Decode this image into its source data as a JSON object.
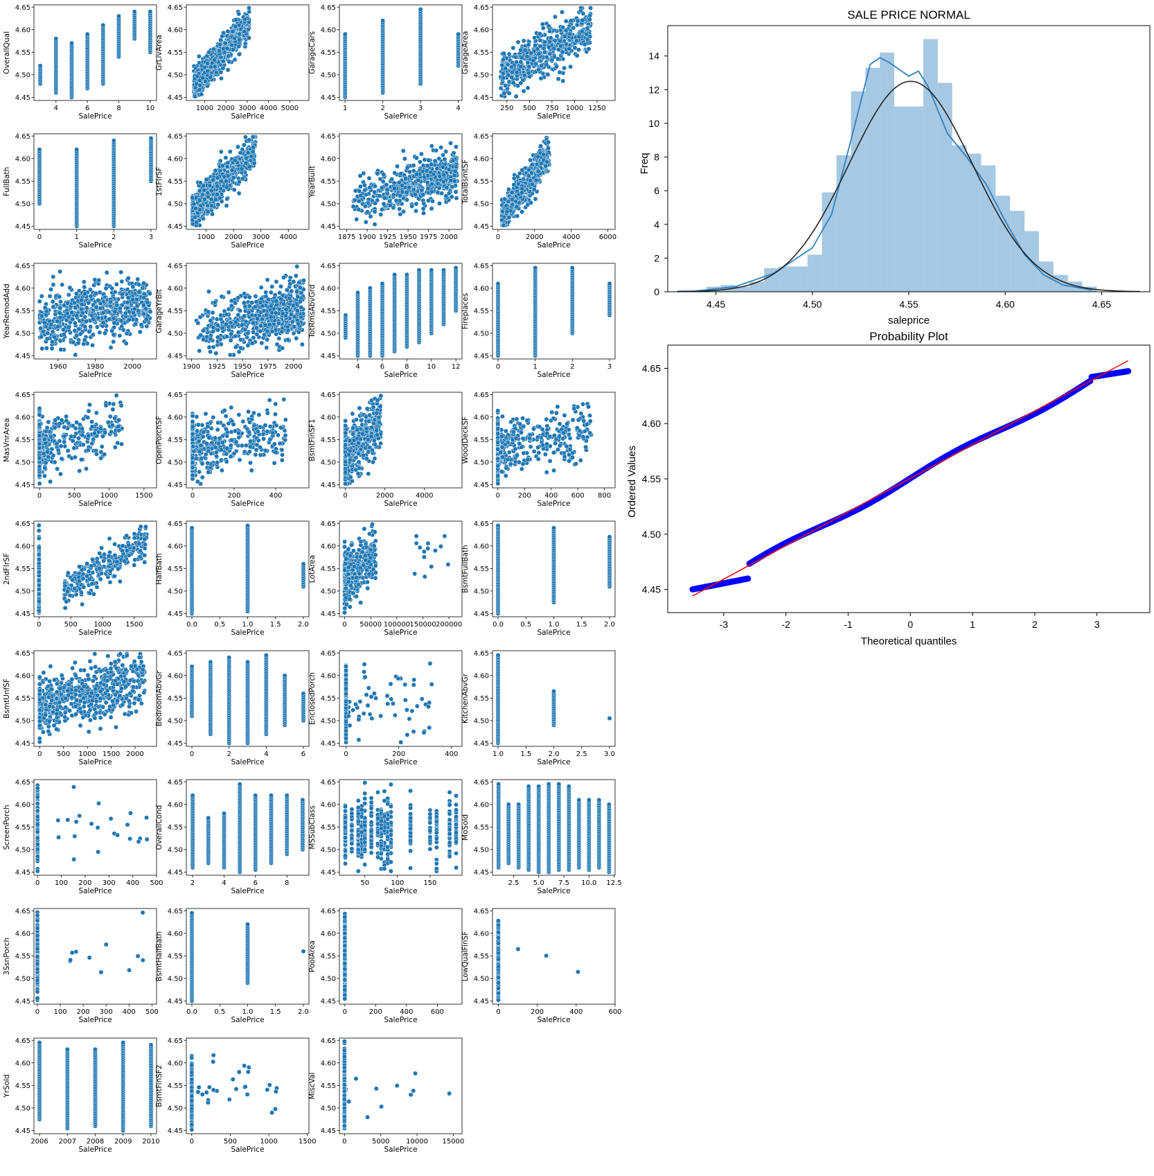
{
  "figure": {
    "background": "#ffffff"
  },
  "colors": {
    "scatter": "#1f77b4",
    "hist": "#a6c8e2",
    "kde": "#2f7fbf",
    "normal": "#222222",
    "probpoint": "#0000ff",
    "probline": "#ff0000"
  },
  "scatter_grid": {
    "xlabel": "SalePrice",
    "y_ticks": [
      "4.45",
      "4.50",
      "4.55",
      "4.60",
      "4.65"
    ],
    "y_lim": [
      4.443,
      4.655
    ],
    "panels": [
      {
        "ylabel": "OverallQual",
        "xlim": [
          2.6,
          10.4
        ],
        "xticks": [
          4,
          6,
          8,
          10
        ],
        "kind": "discrete",
        "xs": [
          3,
          4,
          5,
          6,
          7,
          8,
          9,
          10
        ],
        "spans": [
          [
            4.48,
            4.52
          ],
          [
            4.46,
            4.58
          ],
          [
            4.45,
            4.57
          ],
          [
            4.47,
            4.59
          ],
          [
            4.48,
            4.61
          ],
          [
            4.54,
            4.63
          ],
          [
            4.58,
            4.64
          ],
          [
            4.55,
            4.64
          ]
        ]
      },
      {
        "ylabel": "GrLivArea",
        "xlim": [
          140,
          5900
        ],
        "xticks": [
          1000,
          2000,
          3000,
          4000,
          5000
        ],
        "xtick_labels": [
          "1000",
          "2000",
          "3000",
          "4000",
          "5000"
        ],
        "kind": "cloud",
        "xs": [],
        "spans": []
      },
      {
        "ylabel": "GarageCars",
        "xlim": [
          0.85,
          4.1
        ],
        "xticks": [
          1,
          2,
          3,
          4
        ],
        "kind": "discrete",
        "xs": [
          1,
          2,
          3,
          4
        ],
        "spans": [
          [
            4.45,
            4.59
          ],
          [
            4.46,
            4.62
          ],
          [
            4.48,
            4.645
          ],
          [
            4.52,
            4.59
          ]
        ]
      },
      {
        "ylabel": "GarageArea",
        "xlim": [
          90,
          1450
        ],
        "xticks": [
          250,
          500,
          750,
          1000,
          1250
        ],
        "kind": "cloud",
        "xs": [],
        "spans": []
      },
      {
        "ylabel": "FullBath",
        "xlim": [
          -0.15,
          3.15
        ],
        "xticks": [
          0,
          1,
          2,
          3
        ],
        "kind": "discrete",
        "xs": [
          0,
          1,
          2,
          3
        ],
        "spans": [
          [
            4.5,
            4.62
          ],
          [
            4.45,
            4.62
          ],
          [
            4.45,
            4.64
          ],
          [
            4.55,
            4.645
          ]
        ]
      },
      {
        "ylabel": "1stFlrSF",
        "xlim": [
          280,
          4750
        ],
        "xticks": [
          1000,
          2000,
          3000,
          4000
        ],
        "kind": "cloud",
        "xs": [],
        "spans": []
      },
      {
        "ylabel": "YearBuilt",
        "xlim": [
          1866,
          2016
        ],
        "xticks": [
          1875,
          1900,
          1925,
          1950,
          1975,
          2000
        ],
        "kind": "cloud",
        "xs": [],
        "spans": []
      },
      {
        "ylabel": "TotalBsmtSF",
        "xlim": [
          -300,
          6400
        ],
        "xticks": [
          0,
          2000,
          4000,
          6000
        ],
        "kind": "cloud",
        "xs": [],
        "spans": []
      },
      {
        "ylabel": "YearRemodAdd",
        "xlim": [
          1947,
          2013
        ],
        "xticks": [
          1960,
          1980,
          2000
        ],
        "kind": "cloud",
        "xs": [],
        "spans": []
      },
      {
        "ylabel": "GarageYrBlt",
        "xlim": [
          1895,
          2015
        ],
        "xticks": [
          1900,
          1925,
          1950,
          1975,
          2000
        ],
        "kind": "cloud",
        "xs": [],
        "spans": []
      },
      {
        "ylabel": "TotRmsAbvGrd",
        "xlim": [
          2.5,
          12.5
        ],
        "xticks": [
          4,
          6,
          8,
          10,
          12
        ],
        "kind": "discrete",
        "xs": [
          3,
          4,
          5,
          6,
          7,
          8,
          9,
          10,
          11,
          12
        ],
        "spans": [
          [
            4.49,
            4.54
          ],
          [
            4.45,
            4.59
          ],
          [
            4.45,
            4.6
          ],
          [
            4.45,
            4.61
          ],
          [
            4.46,
            4.63
          ],
          [
            4.47,
            4.63
          ],
          [
            4.48,
            4.64
          ],
          [
            4.5,
            4.64
          ],
          [
            4.52,
            4.64
          ],
          [
            4.55,
            4.645
          ]
        ]
      },
      {
        "ylabel": "Fireplaces",
        "xlim": [
          -0.15,
          3.15
        ],
        "xticks": [
          0,
          1,
          2,
          3
        ],
        "kind": "discrete",
        "xs": [
          0,
          1,
          2,
          3
        ],
        "spans": [
          [
            4.45,
            4.61
          ],
          [
            4.45,
            4.645
          ],
          [
            4.5,
            4.645
          ],
          [
            4.54,
            4.61
          ]
        ]
      },
      {
        "ylabel": "MasVnrArea",
        "xlim": [
          -80,
          1680
        ],
        "xticks": [
          0,
          500,
          1000,
          1500
        ],
        "kind": "cloud",
        "xs": [],
        "spans": []
      },
      {
        "ylabel": "OpenPorchSF",
        "xlim": [
          -30,
          560
        ],
        "xticks": [
          0,
          200,
          400
        ],
        "kind": "cloud",
        "xs": [],
        "spans": []
      },
      {
        "ylabel": "BsmtFinSF1",
        "xlim": [
          -300,
          5900
        ],
        "xticks": [
          0,
          2000,
          4000
        ],
        "kind": "cloud",
        "xs": [],
        "spans": []
      },
      {
        "ylabel": "WoodDeckSF",
        "xlim": [
          -40,
          880
        ],
        "xticks": [
          0,
          200,
          400,
          600,
          800
        ],
        "kind": "cloud",
        "xs": [],
        "spans": []
      },
      {
        "ylabel": "2ndFlrSF",
        "xlim": [
          -80,
          1850
        ],
        "xticks": [
          0,
          500,
          1000,
          1500
        ],
        "kind": "cloud",
        "xs": [],
        "spans": []
      },
      {
        "ylabel": "HalfBath",
        "xlim": [
          -0.1,
          2.1
        ],
        "xticks": [
          0.0,
          0.5,
          1.0,
          1.5,
          2.0
        ],
        "xtick_labels": [
          "0.0",
          "0.5",
          "1.0",
          "1.5",
          "2.0"
        ],
        "kind": "discrete",
        "xs": [
          0,
          1,
          2
        ],
        "spans": [
          [
            4.45,
            4.64
          ],
          [
            4.455,
            4.645
          ],
          [
            4.51,
            4.56
          ]
        ]
      },
      {
        "ylabel": "LotArea",
        "xlim": [
          -10000,
          225000
        ],
        "xticks": [
          0,
          50000,
          100000,
          150000,
          200000
        ],
        "kind": "cloud",
        "xs": [],
        "spans": []
      },
      {
        "ylabel": "BsmtFullBath",
        "xlim": [
          -0.1,
          2.1
        ],
        "xticks": [
          0.0,
          0.5,
          1.0,
          1.5,
          2.0
        ],
        "xtick_labels": [
          "0.0",
          "0.5",
          "1.0",
          "1.5",
          "2.0"
        ],
        "kind": "discrete",
        "xs": [
          0,
          1,
          2
        ],
        "spans": [
          [
            4.45,
            4.645
          ],
          [
            4.475,
            4.64
          ],
          [
            4.51,
            4.62
          ]
        ]
      },
      {
        "ylabel": "BsmtUnfSF",
        "xlim": [
          -120,
          2450
        ],
        "xticks": [
          0,
          500,
          1000,
          1500,
          2000
        ],
        "kind": "cloud",
        "xs": [],
        "spans": []
      },
      {
        "ylabel": "BedroomAbvGr",
        "xlim": [
          -0.3,
          6.3
        ],
        "xticks": [
          0,
          2,
          4,
          6
        ],
        "kind": "discrete",
        "xs": [
          0,
          1,
          2,
          3,
          4,
          5,
          6
        ],
        "spans": [
          [
            4.51,
            4.62
          ],
          [
            4.47,
            4.63
          ],
          [
            4.45,
            4.64
          ],
          [
            4.45,
            4.63
          ],
          [
            4.47,
            4.645
          ],
          [
            4.49,
            4.6
          ],
          [
            4.5,
            4.56
          ]
        ]
      },
      {
        "ylabel": "EnclosedPorch",
        "xlim": [
          -25,
          440
        ],
        "xticks": [
          0,
          200,
          400
        ],
        "kind": "cloud",
        "xs": [],
        "spans": []
      },
      {
        "ylabel": "KitchenAbvGr",
        "xlim": [
          0.9,
          3.1
        ],
        "xticks": [
          1.0,
          1.5,
          2.0,
          2.5,
          3.0
        ],
        "xtick_labels": [
          "1.0",
          "1.5",
          "2.0",
          "2.5",
          "3.0"
        ],
        "kind": "discrete",
        "xs": [
          1,
          2,
          3
        ],
        "spans": [
          [
            4.45,
            4.645
          ],
          [
            4.49,
            4.565
          ],
          [
            4.505,
            4.505
          ]
        ]
      },
      {
        "ylabel": "ScreenPorch",
        "xlim": [
          -15,
          500
        ],
        "xticks": [
          0,
          100,
          200,
          300,
          400,
          500
        ],
        "kind": "cloud",
        "xs": [],
        "spans": []
      },
      {
        "ylabel": "OverallCond",
        "xlim": [
          1.6,
          9.4
        ],
        "xticks": [
          2,
          4,
          6,
          8
        ],
        "kind": "discrete",
        "xs": [
          2,
          3,
          4,
          5,
          6,
          7,
          8,
          9
        ],
        "spans": [
          [
            4.46,
            4.62
          ],
          [
            4.47,
            4.57
          ],
          [
            4.46,
            4.58
          ],
          [
            4.45,
            4.645
          ],
          [
            4.455,
            4.62
          ],
          [
            4.47,
            4.62
          ],
          [
            4.49,
            4.62
          ],
          [
            4.5,
            4.61
          ]
        ]
      },
      {
        "ylabel": "MSSubClass",
        "xlim": [
          11,
          199
        ],
        "xticks": [
          50,
          100,
          150
        ],
        "kind": "cloud",
        "xs": [],
        "spans": []
      },
      {
        "ylabel": "MoSold",
        "xlim": [
          0.4,
          12.6
        ],
        "xticks": [
          2.5,
          5.0,
          7.5,
          10.0,
          12.5
        ],
        "xtick_labels": [
          "2.5",
          "5.0",
          "7.5",
          "10.0",
          "12.5"
        ],
        "kind": "discrete",
        "xs": [
          1,
          2,
          3,
          4,
          5,
          6,
          7,
          8,
          9,
          10,
          11,
          12
        ],
        "spans": [
          [
            4.46,
            4.645
          ],
          [
            4.47,
            4.6
          ],
          [
            4.46,
            4.6
          ],
          [
            4.455,
            4.64
          ],
          [
            4.45,
            4.64
          ],
          [
            4.45,
            4.645
          ],
          [
            4.455,
            4.645
          ],
          [
            4.455,
            4.64
          ],
          [
            4.46,
            4.61
          ],
          [
            4.455,
            4.61
          ],
          [
            4.46,
            4.61
          ],
          [
            4.45,
            4.6
          ]
        ]
      },
      {
        "ylabel": "3SsnPorch",
        "xlim": [
          -15,
          520
        ],
        "xticks": [
          0,
          100,
          200,
          300,
          400,
          500
        ],
        "kind": "cloud",
        "xs": [],
        "spans": []
      },
      {
        "ylabel": "BsmtHalfBath",
        "xlim": [
          -0.1,
          2.1
        ],
        "xticks": [
          0.0,
          0.5,
          1.0,
          1.5,
          2.0
        ],
        "xtick_labels": [
          "0.0",
          "0.5",
          "1.0",
          "1.5",
          "2.0"
        ],
        "kind": "discrete",
        "xs": [
          0,
          1,
          2
        ],
        "spans": [
          [
            4.45,
            4.645
          ],
          [
            4.49,
            4.62
          ],
          [
            4.56,
            4.56
          ]
        ]
      },
      {
        "ylabel": "PoolArea",
        "xlim": [
          -35,
          760
        ],
        "xticks": [
          0,
          200,
          400,
          600
        ],
        "kind": "cloud",
        "xs": [],
        "spans": []
      },
      {
        "ylabel": "LowQualFinSF",
        "xlim": [
          -30,
          600
        ],
        "xticks": [
          0,
          200,
          400,
          600
        ],
        "kind": "cloud",
        "xs": [],
        "spans": []
      },
      {
        "ylabel": "YrSold",
        "xlim": [
          2005.8,
          2010.2
        ],
        "xticks": [
          2006,
          2007,
          2008,
          2009,
          2010
        ],
        "kind": "discrete",
        "xs": [
          2006,
          2007,
          2008,
          2009,
          2010
        ],
        "spans": [
          [
            4.475,
            4.645
          ],
          [
            4.455,
            4.63
          ],
          [
            4.46,
            4.63
          ],
          [
            4.45,
            4.645
          ],
          [
            4.46,
            4.64
          ]
        ]
      },
      {
        "ylabel": "BsmtFinSF2",
        "xlim": [
          -70,
          1520
        ],
        "xticks": [
          0,
          500,
          1000,
          1500
        ],
        "kind": "cloud",
        "xs": [],
        "spans": []
      },
      {
        "ylabel": "MiscVal",
        "xlim": [
          -700,
          16200
        ],
        "xticks": [
          0,
          5000,
          10000,
          15000
        ],
        "kind": "cloud",
        "xs": [],
        "spans": []
      }
    ]
  },
  "chart_data": [
    {
      "type": "bar",
      "title": "SALE PRICE NORMAL",
      "xlabel": "saleprice",
      "ylabel": "Freq",
      "xlim": [
        4.425,
        4.675
      ],
      "ylim": [
        0,
        15.8
      ],
      "xticks": [
        "4.45",
        "4.50",
        "4.55",
        "4.60",
        "4.65"
      ],
      "yticks": [
        "0",
        "2",
        "4",
        "6",
        "8",
        "10",
        "12",
        "14"
      ],
      "bin_edges": [
        4.43,
        4.4375,
        4.445,
        4.4525,
        4.46,
        4.4675,
        4.475,
        4.4825,
        4.49,
        4.4975,
        4.505,
        4.5125,
        4.52,
        4.5275,
        4.535,
        4.5425,
        4.55,
        4.5575,
        4.565,
        4.5725,
        4.58,
        4.5875,
        4.595,
        4.6025,
        4.61,
        4.6175,
        4.625,
        4.6325,
        4.64,
        4.6475
      ],
      "values": [
        0.1,
        0.1,
        0.3,
        0.4,
        0.3,
        0.6,
        1.4,
        1.5,
        1.5,
        2.2,
        5.9,
        8.1,
        11.9,
        13.3,
        14.2,
        11.0,
        11.0,
        15.0,
        12.4,
        8.7,
        8.2,
        7.5,
        5.7,
        4.8,
        3.6,
        1.8,
        1.0,
        0.6,
        0.3
      ],
      "kde": [
        [
          4.44,
          0.05
        ],
        [
          4.46,
          0.3
        ],
        [
          4.48,
          1.1
        ],
        [
          4.5,
          2.6
        ],
        [
          4.51,
          4.6
        ],
        [
          4.52,
          9.0
        ],
        [
          4.53,
          13.5
        ],
        [
          4.535,
          13.9
        ],
        [
          4.54,
          13.6
        ],
        [
          4.55,
          12.8
        ],
        [
          4.555,
          13.1
        ],
        [
          4.56,
          12.2
        ],
        [
          4.57,
          9.4
        ],
        [
          4.58,
          8.0
        ],
        [
          4.59,
          6.4
        ],
        [
          4.6,
          4.2
        ],
        [
          4.61,
          2.2
        ],
        [
          4.62,
          1.0
        ],
        [
          4.63,
          0.4
        ],
        [
          4.645,
          0.1
        ]
      ],
      "normal_fit": {
        "mean": 4.551,
        "std": 0.032,
        "peak": 12.5
      }
    },
    {
      "type": "scatter",
      "title": "Probability Plot",
      "xlabel": "Theoretical quantiles",
      "ylabel": "Ordered Values",
      "xlim": [
        -3.9,
        3.85
      ],
      "ylim": [
        4.429,
        4.671
      ],
      "xticks": [
        "-3",
        "-2",
        "-1",
        "0",
        "1",
        "2",
        "3"
      ],
      "yticks": [
        "4.45",
        "4.50",
        "4.55",
        "4.60",
        "4.65"
      ],
      "fit_line": {
        "slope": 0.0304,
        "intercept": 4.5505,
        "x": [
          -3.5,
          3.5
        ]
      }
    }
  ]
}
